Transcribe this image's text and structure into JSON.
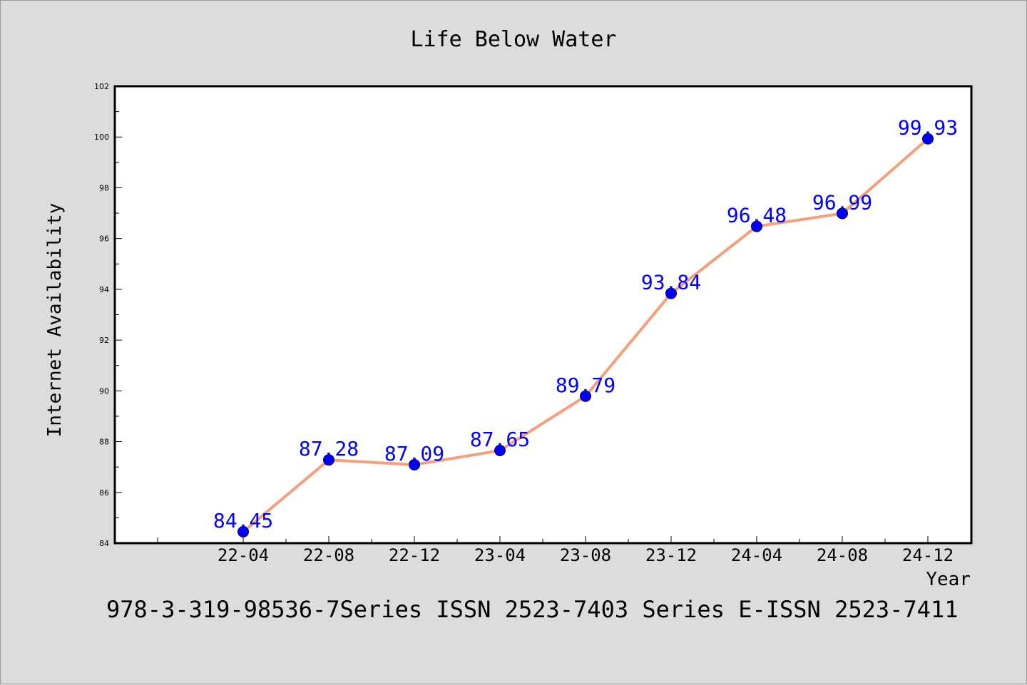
{
  "chart_data": {
    "type": "line",
    "title": "Life Below Water",
    "xlabel": "Year",
    "ylabel": "Internet Availability",
    "categories": [
      "22-04",
      "22-08",
      "22-12",
      "23-04",
      "23-08",
      "23-12",
      "24-04",
      "24-08",
      "24-12"
    ],
    "series": [
      {
        "values": [
          84.45,
          87.28,
          87.09,
          87.65,
          89.79,
          93.84,
          96.48,
          96.99,
          99.93
        ]
      }
    ],
    "ylim": [
      84,
      102
    ],
    "yticks": [
      "84",
      "86",
      "88",
      "90",
      "92",
      "94",
      "96",
      "98",
      "100",
      "102"
    ],
    "data_labels": [
      "84.45",
      "87.28",
      "87.09",
      "87.65",
      "89.79",
      "93.84",
      "96.48",
      "96.99",
      "99.93"
    ],
    "grid": false,
    "legend": "none",
    "line_color": "#f4a07c",
    "marker_color": "#0000ff",
    "label_color": "#0000ff"
  },
  "footer": {
    "text": "978-3-319-98536-7Series ISSN 2523-7403 Series E-ISSN 2523-7411"
  }
}
